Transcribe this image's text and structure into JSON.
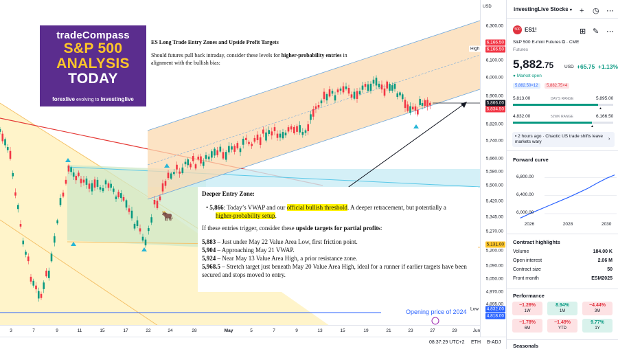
{
  "chart": {
    "currency": "USD",
    "price_ticks": [
      "6,300.00",
      "6,200.00",
      "6,100.00",
      "6,000.00",
      "5,900.00",
      "5,820.00",
      "5,740.00",
      "5,660.00",
      "5,580.00",
      "5,500.00",
      "5,420.00",
      "5,345.00",
      "5,270.00",
      "5,200.00",
      "5,090.00",
      "5,050.00",
      "4,970.00",
      "4,895.00",
      "4,850.00"
    ],
    "price_badges": {
      "high_label": "High",
      "high_value": "6,166.50",
      "high_value2": "6,166.50",
      "last_price": "5,866.00",
      "last_price2": "5,834.50",
      "level_5131": "5,131.00",
      "low_label": "Low",
      "low_value": "4,832.00",
      "low_value2": "4,818.00"
    },
    "time_ticks": [
      "3",
      "7",
      "9",
      "11",
      "15",
      "17",
      "22",
      "24",
      "28",
      "May",
      "5",
      "7",
      "9",
      "13",
      "15",
      "19",
      "21",
      "23",
      "27",
      "29",
      "Jun"
    ],
    "opening_price_label": "Opening price of 2024",
    "bottom_bar": {
      "time": "08:37:29 UTC+2",
      "session": "ETH",
      "adj": "B-ADJ"
    }
  },
  "logo": {
    "brand": "tradeCompass",
    "line1": "S&P 500",
    "line2": "ANALYSIS",
    "line3": "TODAY",
    "footer_left": "forexlive",
    "footer_mid": "evolving to",
    "footer_right": "investinglive"
  },
  "article": {
    "headline": "ES Long Trade Entry Zones and Upside Profit Targets",
    "intro_pre": "Should futures pull back intraday, consider these levels for ",
    "intro_bold": "higher-probability entries",
    "intro_post": " in alignment with the bullish bias:",
    "note_title": "Deeper Entry Zone:",
    "entry_level": "5,866",
    "entry_text_a": ": Today’s VWAP and our ",
    "entry_hl1": "official bullish threshold",
    "entry_text_b": ". A deeper retracement, but potentially a",
    "entry_hl2": "higher-probability setup",
    "entry_text_c": ".",
    "targets_pre": "If these entries trigger, consider these ",
    "targets_bold": "upside targets for partial profits",
    "targets_post": ":",
    "targets": [
      {
        "level": "5,883",
        "text": " – Just under May 22 Value Area Low, first friction point."
      },
      {
        "level": "5,904",
        "text": " – Approaching May 21 VWAP."
      },
      {
        "level": "5,924",
        "text": " – Near May 13 Value Area High, a prior resistance zone."
      },
      {
        "level": "5,968.5",
        "text": " – Stretch target just beneath May 20 Value Area High, ideal for a runner if earlier targets have been secured and stops moved to entry."
      }
    ]
  },
  "sidebar": {
    "watchlist_title": "investingLive Stocks",
    "symbol_badge": "500",
    "symbol": "ES1!",
    "instrument": "S&P 500 E-mini Futures",
    "exchange": "CME",
    "category": "Futures",
    "price_main": "5,882",
    "price_dec": ".75",
    "price_currency": "USD",
    "change": "+65.75",
    "change_pct": "+1.13%",
    "market_status": "Market open",
    "bid": "5,882.50×12",
    "ask": "5,882.75×4",
    "day_low": "5,813.00",
    "day_range_label": "DAY'S RANGE",
    "day_high": "5,895.00",
    "wk_low": "4,832.00",
    "wk_range_label": "52WK RANGE",
    "wk_high": "6,166.50",
    "news": "2 hours ago · Chaotic US trade shifts leave markets wary",
    "forward_curve_title": "Forward curve",
    "fc_y": [
      "6,800.00",
      "6,400.00",
      "6,000.00"
    ],
    "fc_x": [
      "2026",
      "2028",
      "2030"
    ],
    "fc_points": [
      [
        2025.5,
        5900
      ],
      [
        2026,
        6000
      ],
      [
        2026.5,
        6090
      ],
      [
        2027,
        6180
      ],
      [
        2027.5,
        6270
      ],
      [
        2028,
        6360
      ],
      [
        2028.5,
        6460
      ],
      [
        2029,
        6560
      ],
      [
        2029.5,
        6680
      ],
      [
        2030,
        6790
      ],
      [
        2030.4,
        6860
      ]
    ],
    "highlights_title": "Contract highlights",
    "highlights": [
      {
        "label": "Volume",
        "value": "184.00 K"
      },
      {
        "label": "Open interest",
        "value": "2.06 M"
      },
      {
        "label": "Contract size",
        "value": "50"
      },
      {
        "label": "Front month",
        "value": "ESM2025"
      }
    ],
    "performance_title": "Performance",
    "performance": [
      {
        "pct": "−1.26%",
        "period": "1W",
        "dir": "neg"
      },
      {
        "pct": "8.94%",
        "period": "1M",
        "dir": "pos"
      },
      {
        "pct": "−4.44%",
        "period": "3M",
        "dir": "neg"
      },
      {
        "pct": "−1.78%",
        "period": "6M",
        "dir": "neg"
      },
      {
        "pct": "−1.49%",
        "period": "YTD",
        "dir": "neg"
      },
      {
        "pct": "9.77%",
        "period": "1Y",
        "dir": "pos"
      }
    ],
    "seasonals_title": "Seasonals"
  },
  "colors": {
    "accent": "#2962ff",
    "up": "#089981",
    "down": "#f23645",
    "logo_bg": "#5b2d8e",
    "logo_gold": "#ffc629"
  }
}
